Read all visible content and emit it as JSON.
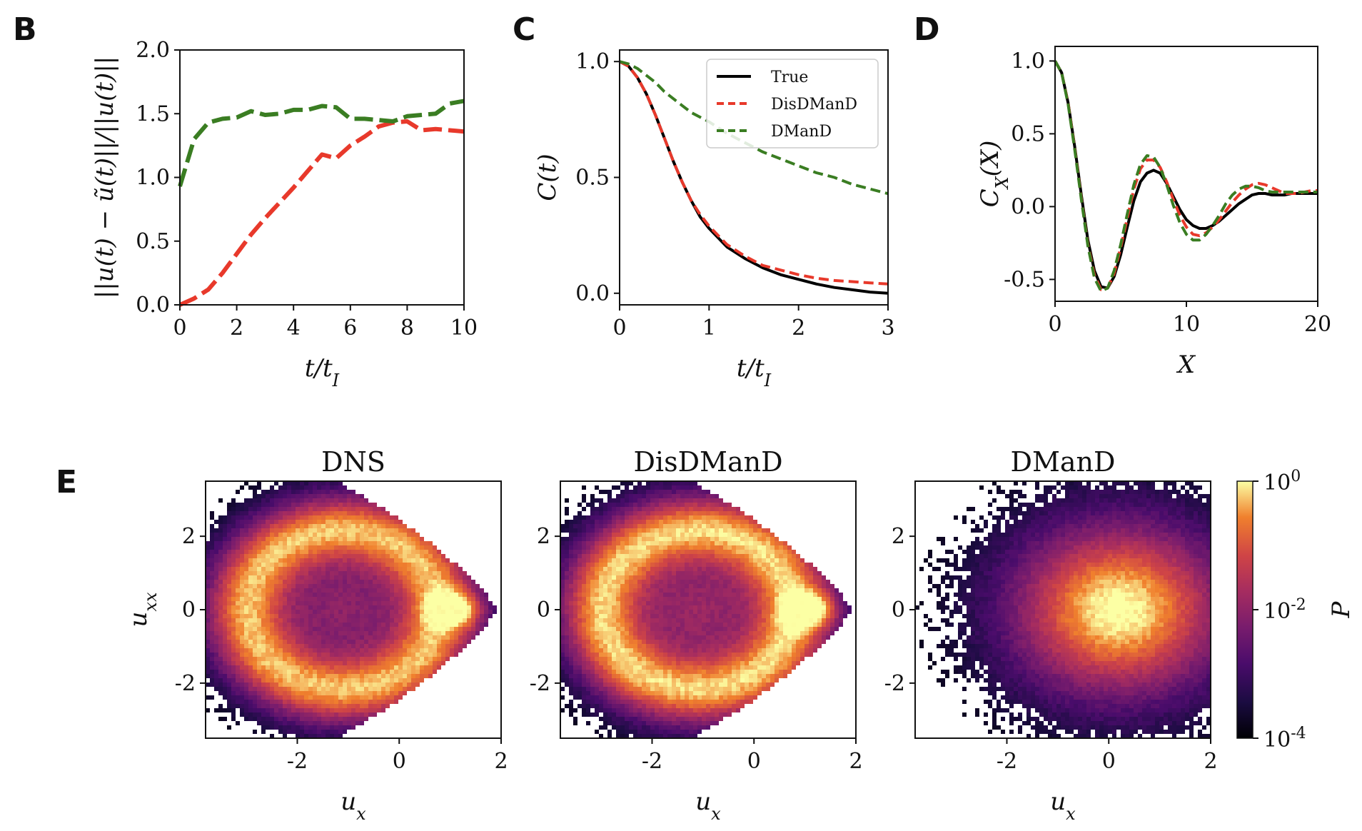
{
  "panel_labels": {
    "B": "B",
    "C": "C",
    "D": "D",
    "E": "E"
  },
  "colors": {
    "true": "#000000",
    "disdmand": "#e8392b",
    "dmand": "#3a7d22"
  },
  "chart_data": [
    {
      "id": "B",
      "type": "line",
      "ylabel": "||u(t) − ũ(t)||/||u(t)||",
      "xlabel": "t/t_I",
      "xlim": [
        0,
        10
      ],
      "ylim": [
        0,
        2
      ],
      "xticks": [
        "0",
        "2",
        "4",
        "6",
        "8",
        "10"
      ],
      "yticks": [
        "0.0",
        "0.5",
        "1.0",
        "1.5",
        "2.0"
      ],
      "series": [
        {
          "name": "DisDManD",
          "style": "dashed",
          "x": [
            0,
            0.5,
            1,
            1.5,
            2,
            2.5,
            3,
            3.5,
            4,
            4.5,
            5,
            5.5,
            6,
            6.5,
            7,
            7.5,
            8,
            8.5,
            9,
            9.5,
            10
          ],
          "y": [
            0.0,
            0.05,
            0.12,
            0.25,
            0.4,
            0.55,
            0.68,
            0.8,
            0.92,
            1.05,
            1.18,
            1.15,
            1.25,
            1.32,
            1.4,
            1.43,
            1.44,
            1.37,
            1.38,
            1.37,
            1.36
          ]
        },
        {
          "name": "DManD",
          "style": "dashed",
          "x": [
            0,
            0.5,
            1,
            1.5,
            2,
            2.5,
            3,
            3.5,
            4,
            4.5,
            5,
            5.5,
            6,
            6.5,
            7,
            7.5,
            8,
            8.5,
            9,
            9.5,
            10
          ],
          "y": [
            0.93,
            1.3,
            1.43,
            1.46,
            1.47,
            1.52,
            1.49,
            1.5,
            1.53,
            1.53,
            1.56,
            1.55,
            1.46,
            1.46,
            1.45,
            1.44,
            1.48,
            1.49,
            1.5,
            1.58,
            1.6
          ]
        }
      ]
    },
    {
      "id": "C",
      "type": "line",
      "ylabel": "C(t)",
      "xlabel": "t/t_I",
      "xlim": [
        0,
        3
      ],
      "ylim": [
        -0.05,
        1.05
      ],
      "xticks": [
        "0",
        "1",
        "2",
        "3"
      ],
      "yticks": [
        "0.0",
        "0.5",
        "1.0"
      ],
      "legend": [
        "True",
        "DisDManD",
        "DManD"
      ],
      "series": [
        {
          "name": "True",
          "style": "solid",
          "x": [
            0,
            0.1,
            0.2,
            0.3,
            0.4,
            0.5,
            0.6,
            0.7,
            0.8,
            0.9,
            1.0,
            1.2,
            1.4,
            1.6,
            1.8,
            2.0,
            2.2,
            2.4,
            2.6,
            2.8,
            3.0
          ],
          "y": [
            1.0,
            0.98,
            0.93,
            0.86,
            0.77,
            0.67,
            0.57,
            0.48,
            0.4,
            0.33,
            0.28,
            0.2,
            0.15,
            0.11,
            0.08,
            0.06,
            0.04,
            0.025,
            0.015,
            0.005,
            0.0
          ]
        },
        {
          "name": "DisDManD",
          "style": "dashed",
          "x": [
            0,
            0.1,
            0.2,
            0.3,
            0.4,
            0.5,
            0.6,
            0.7,
            0.8,
            0.9,
            1.0,
            1.2,
            1.4,
            1.6,
            1.8,
            2.0,
            2.2,
            2.4,
            2.6,
            2.8,
            3.0
          ],
          "y": [
            1.0,
            0.98,
            0.93,
            0.86,
            0.77,
            0.67,
            0.57,
            0.48,
            0.4,
            0.34,
            0.29,
            0.21,
            0.16,
            0.12,
            0.1,
            0.08,
            0.065,
            0.055,
            0.05,
            0.045,
            0.04
          ]
        },
        {
          "name": "DManD",
          "style": "dashed",
          "x": [
            0,
            0.1,
            0.2,
            0.3,
            0.4,
            0.5,
            0.6,
            0.7,
            0.8,
            0.9,
            1.0,
            1.2,
            1.4,
            1.6,
            1.8,
            2.0,
            2.2,
            2.4,
            2.6,
            2.8,
            3.0
          ],
          "y": [
            1.0,
            0.99,
            0.97,
            0.94,
            0.91,
            0.87,
            0.84,
            0.81,
            0.78,
            0.76,
            0.74,
            0.69,
            0.65,
            0.61,
            0.58,
            0.55,
            0.52,
            0.5,
            0.47,
            0.45,
            0.43
          ]
        }
      ]
    },
    {
      "id": "D",
      "type": "line",
      "ylabel": "C_X(X)",
      "xlabel": "X",
      "xlim": [
        0,
        20
      ],
      "ylim": [
        -0.65,
        1.1
      ],
      "xticks": [
        "0",
        "10",
        "20"
      ],
      "yticks": [
        "-0.5",
        "0.0",
        "0.5",
        "1.0"
      ],
      "series": [
        {
          "name": "True",
          "style": "solid",
          "x": [
            0,
            0.5,
            1,
            1.5,
            2,
            2.5,
            3,
            3.5,
            4,
            4.5,
            5,
            5.5,
            6,
            6.5,
            7,
            7.5,
            8,
            8.5,
            9,
            9.5,
            10,
            10.5,
            11,
            11.5,
            12,
            12.5,
            13,
            13.5,
            14,
            14.5,
            15,
            15.5,
            16,
            16.5,
            17,
            17.5,
            18,
            18.5,
            19,
            19.5,
            20
          ],
          "y": [
            1.0,
            0.92,
            0.71,
            0.41,
            0.08,
            -0.23,
            -0.44,
            -0.55,
            -0.56,
            -0.48,
            -0.33,
            -0.14,
            0.04,
            0.17,
            0.23,
            0.25,
            0.23,
            0.16,
            0.07,
            -0.02,
            -0.09,
            -0.13,
            -0.15,
            -0.15,
            -0.13,
            -0.1,
            -0.06,
            -0.02,
            0.02,
            0.05,
            0.08,
            0.09,
            0.09,
            0.08,
            0.08,
            0.08,
            0.09,
            0.09,
            0.09,
            0.09,
            0.09
          ]
        },
        {
          "name": "DisDManD",
          "style": "dashed",
          "x": [
            0,
            0.5,
            1,
            1.5,
            2,
            2.5,
            3,
            3.5,
            4,
            4.5,
            5,
            5.5,
            6,
            6.5,
            7,
            7.5,
            8,
            8.5,
            9,
            9.5,
            10,
            10.5,
            11,
            11.5,
            12,
            12.5,
            13,
            13.5,
            14,
            14.5,
            15,
            15.5,
            16,
            16.5,
            17,
            17.5,
            18,
            18.5,
            19,
            19.5,
            20
          ],
          "y": [
            1.0,
            0.92,
            0.71,
            0.4,
            0.06,
            -0.26,
            -0.47,
            -0.57,
            -0.56,
            -0.46,
            -0.28,
            -0.08,
            0.12,
            0.26,
            0.32,
            0.32,
            0.27,
            0.17,
            0.05,
            -0.06,
            -0.14,
            -0.19,
            -0.2,
            -0.18,
            -0.14,
            -0.09,
            -0.03,
            0.03,
            0.08,
            0.12,
            0.15,
            0.16,
            0.15,
            0.13,
            0.11,
            0.09,
            0.09,
            0.09,
            0.1,
            0.11,
            0.11
          ]
        },
        {
          "name": "DManD",
          "style": "dashed",
          "x": [
            0,
            0.5,
            1,
            1.5,
            2,
            2.5,
            3,
            3.5,
            4,
            4.5,
            5,
            5.5,
            6,
            6.5,
            7,
            7.5,
            8,
            8.5,
            9,
            9.5,
            10,
            10.5,
            11,
            11.5,
            12,
            12.5,
            13,
            13.5,
            14,
            14.5,
            15,
            15.5,
            16,
            16.5,
            17,
            17.5,
            18,
            18.5,
            19,
            19.5,
            20
          ],
          "y": [
            1.0,
            0.92,
            0.7,
            0.39,
            0.05,
            -0.27,
            -0.49,
            -0.58,
            -0.56,
            -0.44,
            -0.26,
            -0.05,
            0.15,
            0.29,
            0.35,
            0.34,
            0.27,
            0.15,
            0.01,
            -0.11,
            -0.19,
            -0.23,
            -0.23,
            -0.19,
            -0.13,
            -0.06,
            0.02,
            0.08,
            0.12,
            0.14,
            0.14,
            0.13,
            0.11,
            0.1,
            0.1,
            0.1,
            0.1,
            0.1,
            0.1,
            0.1,
            0.1
          ]
        }
      ]
    },
    {
      "id": "E",
      "type": "heatmap",
      "xlabel": "u_x",
      "ylabel": "u_xx",
      "xticks": [
        "-2",
        "0",
        "2"
      ],
      "yticks": [
        "2",
        "0",
        "-2"
      ],
      "colorbar": {
        "label": "P",
        "ticks": [
          "10^0",
          "10^-2",
          "10^-4"
        ],
        "colormap": "inferno"
      },
      "panels": [
        {
          "title": "DNS",
          "model": "dns"
        },
        {
          "title": "DisDManD",
          "model": "disdmand"
        },
        {
          "title": "DManD",
          "model": "dmand"
        }
      ]
    }
  ]
}
